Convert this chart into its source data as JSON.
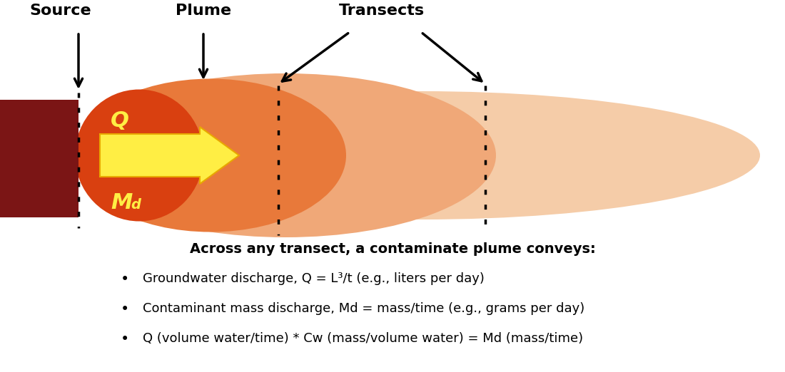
{
  "fig_width": 11.0,
  "fig_height": 5.22,
  "dpi": 100,
  "bg_color": "#ffffff",
  "source_color": "#7B1515",
  "plume_inner_color": "#D94010",
  "plume_mid_color": "#E8793A",
  "plume_outer_color": "#F0A878",
  "plume_lightest_color": "#F5CCA8",
  "arrow_color": "#FFEE44",
  "label_color": "#FFEE44",
  "source_label": "Source",
  "plume_label": "Plume",
  "transects_label": "Transects",
  "Q_label": "Q",
  "Md_label": "M",
  "Md_sub": "d",
  "bold_text": "Across any transect, a contaminate plume conveys:",
  "bullet1": "Groundwater discharge, Q = L³/t (e.g., liters per day)",
  "bullet2": "Contaminant mass discharge, Md = mass/time (e.g., grams per day)",
  "bullet3": "Q (volume water/time) * Cw (mass/volume water) = Md (mass/time)"
}
